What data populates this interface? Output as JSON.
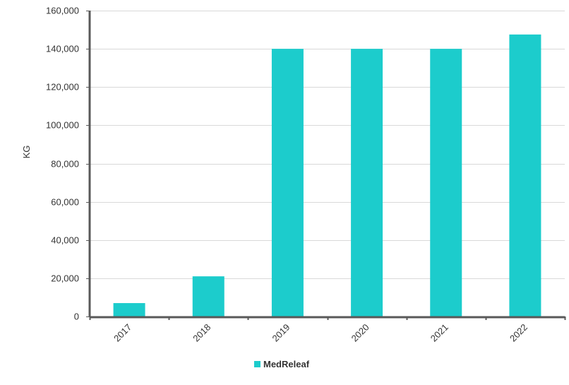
{
  "chart_data": {
    "type": "bar",
    "title": "",
    "xlabel": "",
    "ylabel": "KG",
    "categories": [
      "2017",
      "2018",
      "2019",
      "2020",
      "2021",
      "2022"
    ],
    "series": [
      {
        "name": "MedReleaf",
        "values": [
          7000,
          21000,
          140000,
          140000,
          140000,
          147500
        ],
        "color": "#1ccccc"
      }
    ],
    "ylim": [
      0,
      160000
    ],
    "y_ticks": [
      0,
      20000,
      40000,
      60000,
      80000,
      100000,
      120000,
      140000,
      160000
    ],
    "y_tick_labels": [
      "0",
      "20,000",
      "40,000",
      "60,000",
      "80,000",
      "100,000",
      "120,000",
      "140,000",
      "160,000"
    ],
    "grid": "horizontal",
    "legend_position": "bottom-center",
    "x_tick_rotation": "diagonal"
  }
}
